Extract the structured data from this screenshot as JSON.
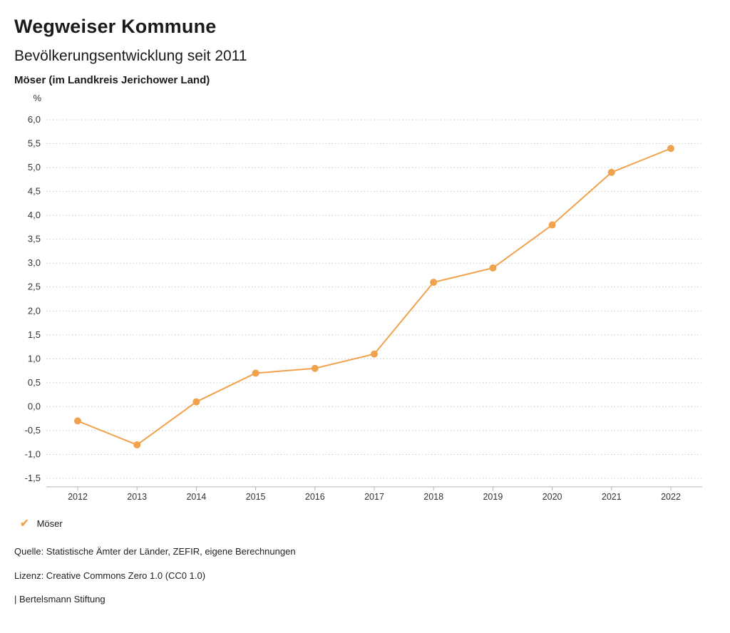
{
  "header": {
    "title": "Wegweiser Kommune",
    "subtitle": "Bevölkerungsentwicklung seit 2011",
    "region": "Möser (im Landkreis Jerichower Land)"
  },
  "chart_data": {
    "type": "line",
    "title": "Bevölkerungsentwicklung seit 2011",
    "unit_label": "%",
    "x": [
      2012,
      2013,
      2014,
      2015,
      2016,
      2017,
      2018,
      2019,
      2020,
      2021,
      2022
    ],
    "series": [
      {
        "name": "Möser",
        "color": "#F0A24C",
        "values": [
          -0.3,
          -0.8,
          0.1,
          0.7,
          0.8,
          1.1,
          2.6,
          2.9,
          3.8,
          4.9,
          5.4
        ]
      }
    ],
    "ylim": [
      -1.5,
      6.0
    ],
    "ytick_step": 0.5,
    "ytick_labels": [
      "6,0",
      "5,5",
      "5,0",
      "4,5",
      "4,0",
      "3,5",
      "3,0",
      "2,5",
      "2,0",
      "1,5",
      "1,0",
      "0,5",
      "0,0",
      "-0,5",
      "-1,0",
      "-1,5"
    ],
    "grid": "dotted-horizontal",
    "legend_position": "bottom-left"
  },
  "legend": {
    "items": [
      {
        "label": "Möser",
        "color": "#F0A24C",
        "icon": "check"
      }
    ]
  },
  "footer": {
    "source": "Quelle: Statistische Ämter der Länder, ZEFIR, eigene Berechnungen",
    "license": "Lizenz: Creative Commons Zero 1.0 (CC0 1.0)",
    "brand": "| Bertelsmann Stiftung"
  },
  "colors": {
    "accent": "#F0A24C",
    "grid": "#c9c9c9",
    "axis": "#b3b3b3",
    "tick_text": "#333333"
  }
}
